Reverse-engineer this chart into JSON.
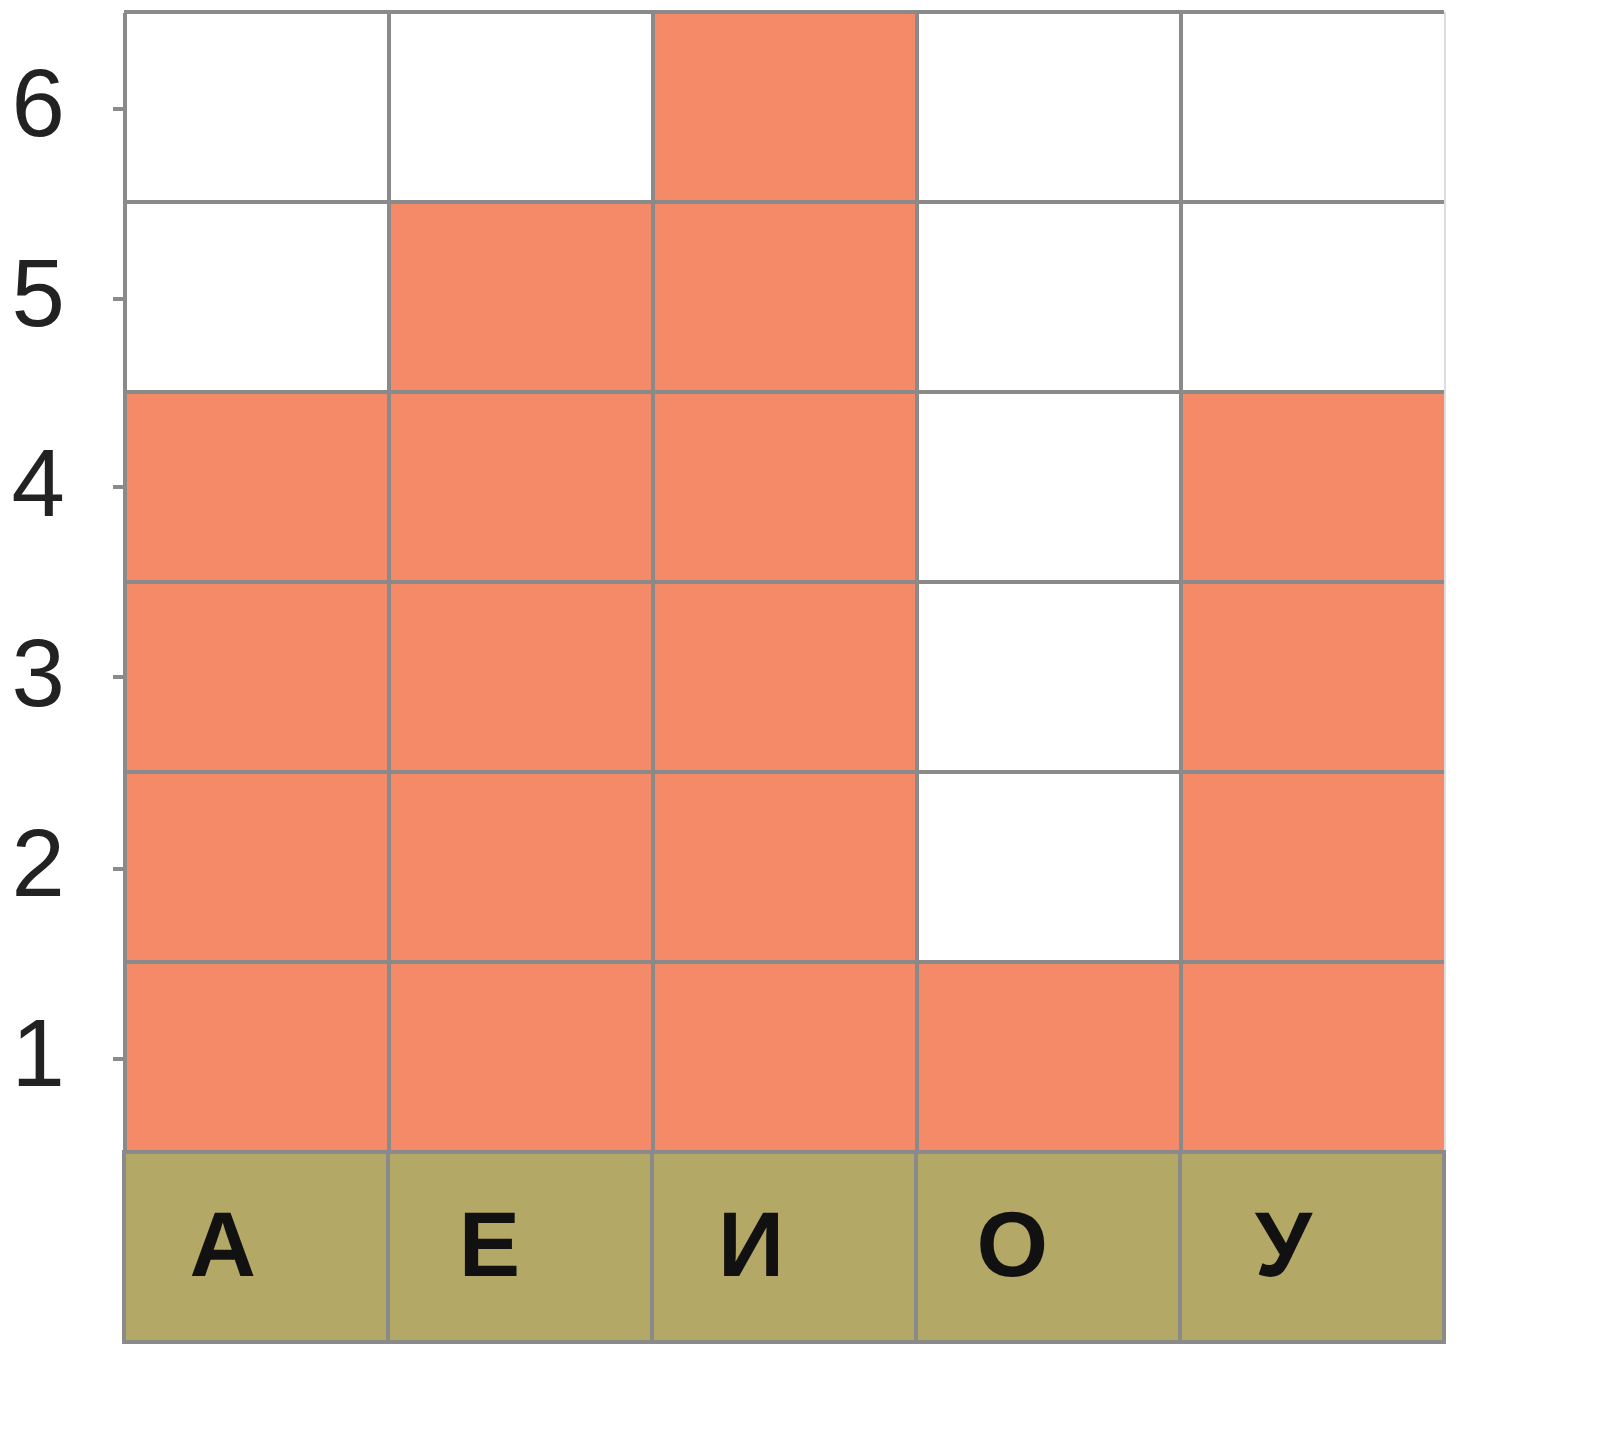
{
  "chart_data": {
    "type": "bar",
    "categories": [
      "А",
      "Е",
      "И",
      "О",
      "У"
    ],
    "values": [
      4.5,
      5.5,
      6.5,
      1.5,
      4.5
    ],
    "color": "#f48a68",
    "ylim": [
      0.5,
      6.5
    ],
    "yticks": [
      1,
      2,
      3,
      4,
      5,
      6
    ],
    "grid": true
  }
}
